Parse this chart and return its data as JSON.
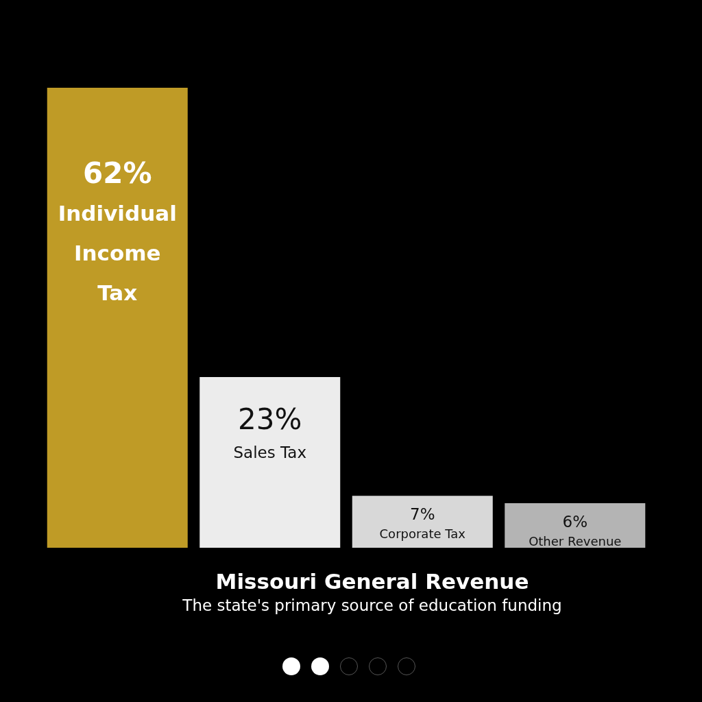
{
  "chart_data": {
    "type": "bar",
    "title": "Missouri General Revenue",
    "subtitle": "The state's primary source of education funding",
    "categories": [
      "Individual Income Tax",
      "Sales Tax",
      "Corporate Tax",
      "Other Revenue"
    ],
    "values": [
      62,
      23,
      7,
      6
    ],
    "value_labels": [
      "62%",
      "23%",
      "7%",
      "6%"
    ],
    "colors": [
      "#bf9b26",
      "#ececec",
      "#d8d8d8",
      "#b4b4b4"
    ]
  }
}
